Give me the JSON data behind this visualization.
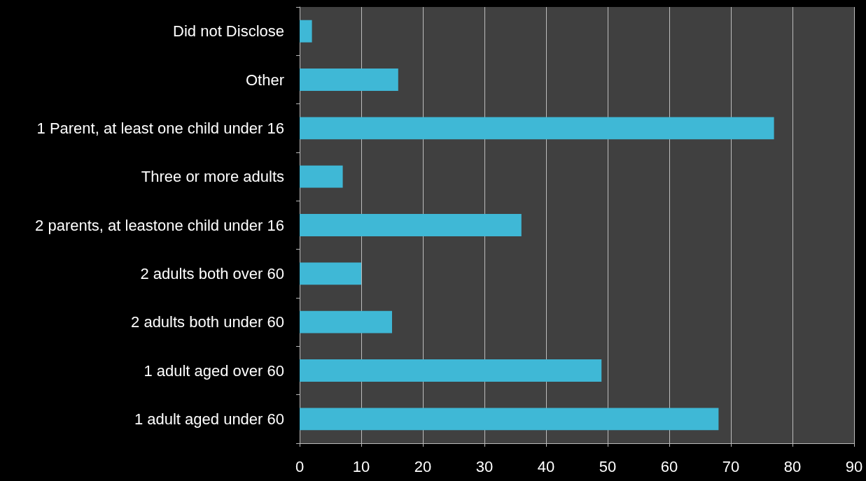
{
  "chart_data": {
    "type": "bar",
    "orientation": "horizontal",
    "categories": [
      "Did not Disclose",
      "Other",
      "1 Parent, at least one child under 16",
      "Three or more adults",
      "2 parents, at leastone child under 16",
      "2 adults both over 60",
      "2 adults both under 60",
      "1 adult aged over 60",
      "1 adult aged under 60"
    ],
    "values": [
      2,
      16,
      77,
      7,
      36,
      10,
      15,
      49,
      68
    ],
    "color": "#3fb8d6",
    "xlim": [
      0,
      90
    ],
    "xticks": [
      0,
      10,
      20,
      30,
      40,
      50,
      60,
      70,
      80,
      90
    ],
    "grid": "x"
  }
}
